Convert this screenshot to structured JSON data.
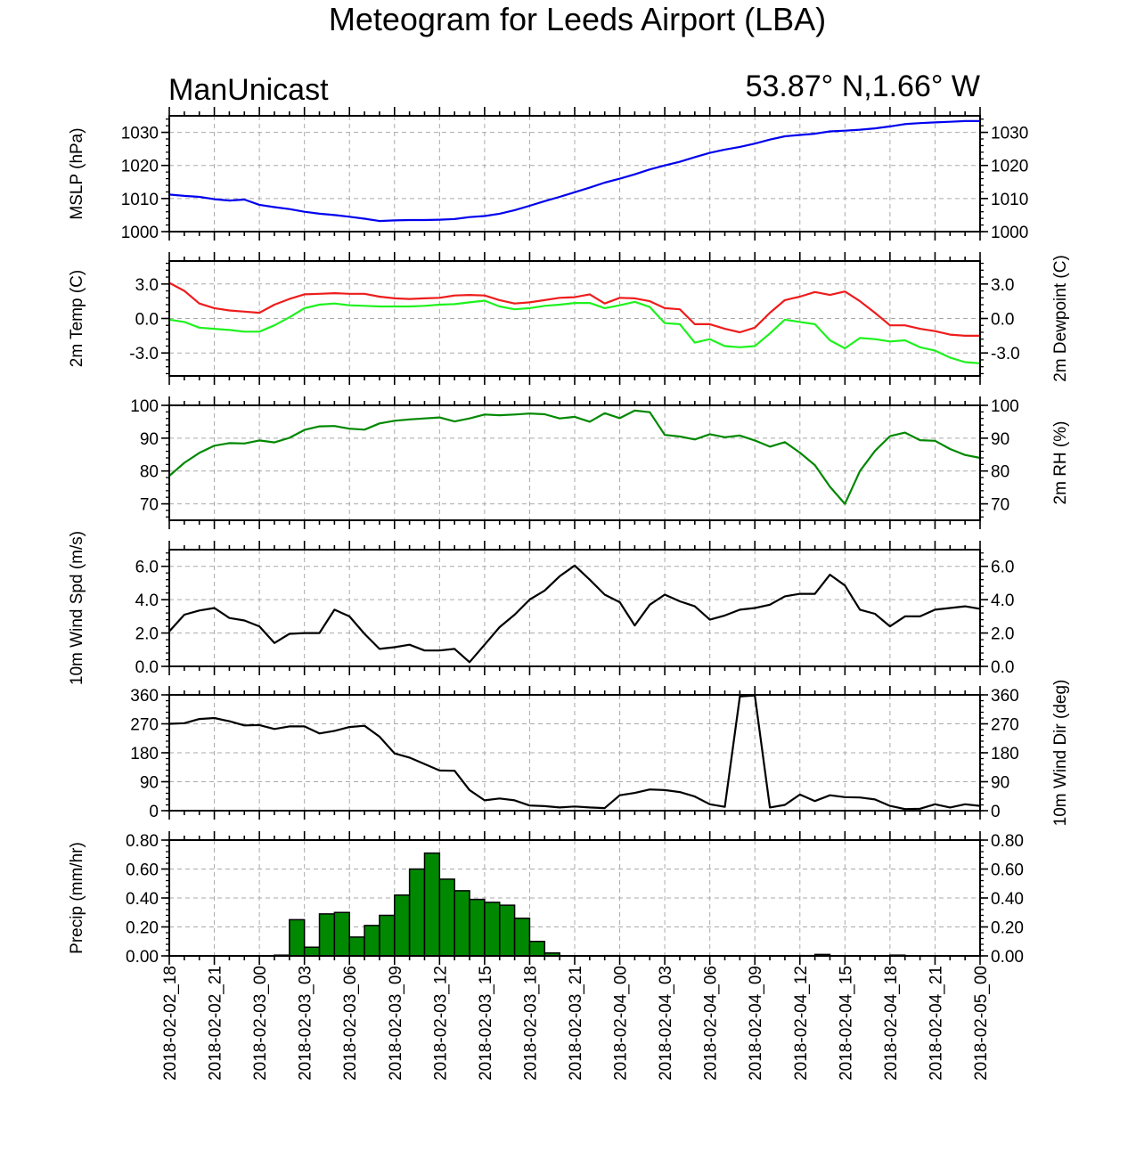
{
  "title": "Meteogram for Leeds Airport (LBA)",
  "model_label": "ManUnicast",
  "location_label": "53.87° N,1.66° W",
  "colors": {
    "mslp": "#0000ee",
    "temp": "#ee1c1c",
    "dewpoint": "#1ef21e",
    "rh": "#008800",
    "wind": "#000000",
    "precip_bar": "#008800",
    "grid": "#a9a9a9"
  },
  "chart_data": [
    {
      "type": "line",
      "id": "mslp",
      "ylabel_left": "MSLP (hPa)",
      "ylabel_right": "",
      "ylim": [
        1000,
        1035
      ],
      "yticks": [
        1000,
        1010,
        1020,
        1030
      ],
      "ytick_labels": [
        "1000",
        "1010",
        "1020",
        "1030"
      ],
      "series": [
        {
          "color_key": "mslp",
          "values": [
            1011.2,
            1010.8,
            1010.5,
            1009.8,
            1009.4,
            1009.7,
            1008.1,
            1007.4,
            1006.8,
            1006.0,
            1005.4,
            1005.0,
            1004.5,
            1003.9,
            1003.2,
            1003.4,
            1003.5,
            1003.5,
            1003.6,
            1003.8,
            1004.4,
            1004.7,
            1005.4,
            1006.5,
            1007.8,
            1009.2,
            1010.5,
            1011.9,
            1013.3,
            1014.8,
            1016.0,
            1017.3,
            1018.8,
            1020.0,
            1021.1,
            1022.5,
            1023.8,
            1024.8,
            1025.6,
            1026.6,
            1027.8,
            1028.8,
            1029.2,
            1029.6,
            1030.3,
            1030.5,
            1030.8,
            1031.2,
            1031.8,
            1032.5,
            1032.8,
            1033.0,
            1033.2,
            1033.4,
            1033.4
          ]
        }
      ]
    },
    {
      "type": "line",
      "id": "temperature",
      "ylabel_left": "2m Temp (C)",
      "ylabel_right": "2m Dewpoint (C)",
      "ylim": [
        -5,
        5
      ],
      "yticks": [
        -3,
        0,
        3
      ],
      "ytick_labels": [
        "-3.0",
        "0.0",
        "3.0"
      ],
      "series": [
        {
          "color_key": "temp",
          "values": [
            3.1,
            2.4,
            1.3,
            0.9,
            0.7,
            0.6,
            0.5,
            1.2,
            1.7,
            2.1,
            2.15,
            2.2,
            2.15,
            2.15,
            1.9,
            1.75,
            1.7,
            1.75,
            1.8,
            2.0,
            2.05,
            2.0,
            1.6,
            1.3,
            1.4,
            1.6,
            1.8,
            1.85,
            2.1,
            1.3,
            1.8,
            1.75,
            1.5,
            0.9,
            0.8,
            -0.5,
            -0.5,
            -0.9,
            -1.2,
            -0.8,
            0.5,
            1.6,
            1.9,
            2.3,
            2.05,
            2.35,
            1.5,
            0.5,
            -0.6,
            -0.6,
            -0.9,
            -1.1,
            -1.4,
            -1.5,
            -1.5
          ]
        },
        {
          "color_key": "dewpoint",
          "values": [
            -0.1,
            -0.3,
            -0.8,
            -0.9,
            -1.0,
            -1.15,
            -1.15,
            -0.6,
            0.1,
            0.9,
            1.2,
            1.3,
            1.15,
            1.1,
            1.05,
            1.05,
            1.05,
            1.1,
            1.2,
            1.25,
            1.4,
            1.55,
            1.05,
            0.8,
            0.9,
            1.1,
            1.2,
            1.35,
            1.35,
            0.9,
            1.15,
            1.45,
            1.0,
            -0.4,
            -0.5,
            -2.1,
            -1.8,
            -2.4,
            -2.5,
            -2.4,
            -1.3,
            -0.1,
            -0.3,
            -0.5,
            -1.9,
            -2.6,
            -1.7,
            -1.8,
            -2.0,
            -1.9,
            -2.5,
            -2.8,
            -3.4,
            -3.8,
            -3.9
          ]
        }
      ]
    },
    {
      "type": "line",
      "id": "humidity",
      "ylabel_left": "",
      "ylabel_right": "2m RH (%)",
      "ylim": [
        65,
        100
      ],
      "yticks": [
        70,
        80,
        90,
        100
      ],
      "ytick_labels": [
        "70",
        "80",
        "90",
        "100"
      ],
      "series": [
        {
          "color_key": "rh",
          "values": [
            78.5,
            82.5,
            85.5,
            87.7,
            88.5,
            88.4,
            89.3,
            88.7,
            90.1,
            92.5,
            93.6,
            93.7,
            92.9,
            92.6,
            94.5,
            95.3,
            95.7,
            96.0,
            96.3,
            95.1,
            96.0,
            97.2,
            97.0,
            97.2,
            97.5,
            97.3,
            96.0,
            96.5,
            95.0,
            97.6,
            96.1,
            98.4,
            97.9,
            91.0,
            90.5,
            89.6,
            91.2,
            90.3,
            90.8,
            89.3,
            87.4,
            88.8,
            85.6,
            81.8,
            75.2,
            70.0,
            80.0,
            86.1,
            90.6,
            91.7,
            89.4,
            89.2,
            86.7,
            84.9,
            84.0
          ]
        }
      ]
    },
    {
      "type": "line",
      "id": "wind_speed",
      "ylabel_left": "10m Wind Spd (m/s)",
      "ylabel_right": "",
      "ylim": [
        0,
        7
      ],
      "yticks": [
        0,
        2,
        4,
        6
      ],
      "ytick_labels": [
        "0.0",
        "2.0",
        "4.0",
        "6.0"
      ],
      "series": [
        {
          "color_key": "wind",
          "values": [
            2.1,
            3.1,
            3.35,
            3.5,
            2.9,
            2.75,
            2.4,
            1.4,
            1.95,
            2.0,
            2.0,
            3.4,
            3.0,
            1.95,
            1.05,
            1.15,
            1.3,
            0.95,
            0.95,
            1.05,
            0.25,
            1.3,
            2.35,
            3.1,
            4.0,
            4.55,
            5.4,
            6.05,
            5.2,
            4.3,
            3.85,
            2.45,
            3.7,
            4.3,
            3.9,
            3.6,
            2.8,
            3.05,
            3.4,
            3.5,
            3.7,
            4.2,
            4.35,
            4.35,
            5.5,
            4.85,
            3.4,
            3.15,
            2.4,
            3.0,
            3.0,
            3.4,
            3.5,
            3.6,
            3.45
          ]
        }
      ]
    },
    {
      "type": "line",
      "id": "wind_direction",
      "ylabel_left": "",
      "ylabel_right": "10m Wind Dir (deg)",
      "ylim": [
        0,
        360
      ],
      "yticks": [
        0,
        90,
        180,
        270,
        360
      ],
      "ytick_labels": [
        "0",
        "90",
        "180",
        "270",
        "360"
      ],
      "series": [
        {
          "color_key": "wind",
          "values": [
            270,
            272,
            285,
            288,
            278,
            265,
            266,
            254,
            262,
            262,
            240,
            248,
            260,
            264,
            230,
            178,
            165,
            145,
            125,
            124,
            64,
            32,
            38,
            32,
            16,
            14,
            10,
            13,
            10,
            8,
            48,
            55,
            66,
            64,
            58,
            44,
            20,
            12,
            355,
            358,
            10,
            18,
            50,
            30,
            48,
            42,
            41,
            35,
            15,
            5,
            6,
            20,
            10,
            20,
            15
          ]
        }
      ]
    },
    {
      "type": "bar",
      "id": "precipitation",
      "ylabel_left": "Precip (mm/hr)",
      "ylabel_right": "",
      "ylim": [
        0,
        0.8
      ],
      "yticks": [
        0,
        0.2,
        0.4,
        0.6,
        0.8
      ],
      "ytick_labels": [
        "0.00",
        "0.20",
        "0.40",
        "0.60",
        "0.80"
      ],
      "series": [
        {
          "color_key": "precip_bar",
          "values": [
            0,
            0,
            0,
            0,
            0,
            0,
            0,
            0.005,
            0.25,
            0.06,
            0.29,
            0.3,
            0.13,
            0.21,
            0.28,
            0.42,
            0.6,
            0.71,
            0.53,
            0.45,
            0.39,
            0.37,
            0.35,
            0.26,
            0.1,
            0.02,
            0,
            0,
            0,
            0.002,
            0,
            0.002,
            0,
            0,
            0,
            0,
            0,
            0,
            0,
            0,
            0,
            0,
            0.002,
            0.01,
            0,
            0,
            0,
            0,
            0.005,
            0,
            0,
            0,
            0,
            0
          ]
        }
      ]
    }
  ],
  "x_axis": {
    "tick_labels": [
      "2018-02-02_18",
      "2018-02-02_21",
      "2018-02-03_00",
      "2018-02-03_03",
      "2018-02-03_06",
      "2018-02-03_09",
      "2018-02-03_12",
      "2018-02-03_15",
      "2018-02-03_18",
      "2018-02-03_21",
      "2018-02-04_00",
      "2018-02-04_03",
      "2018-02-04_06",
      "2018-02-04_09",
      "2018-02-04_12",
      "2018-02-04_15",
      "2018-02-04_18",
      "2018-02-04_21",
      "2018-02-05_00"
    ]
  }
}
